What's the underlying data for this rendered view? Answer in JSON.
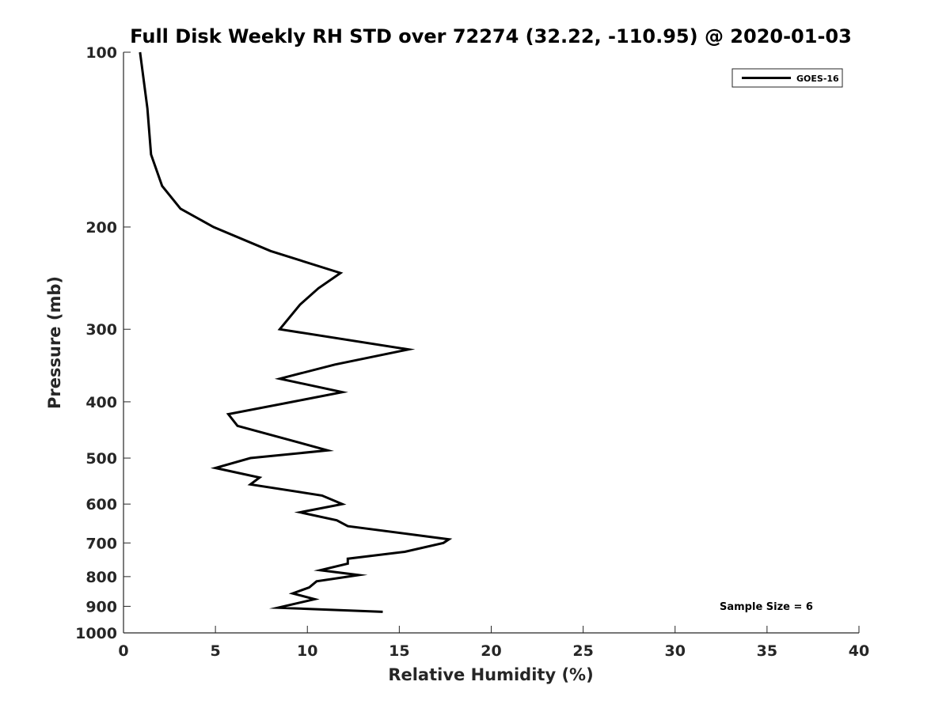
{
  "chart_data": {
    "type": "line",
    "title": "Full Disk Weekly RH STD over 72274 (32.22, -110.95) @ 2020-01-03",
    "xlabel": "Relative Humidity (%)",
    "ylabel": "Pressure (mb)",
    "xlim": [
      0,
      40
    ],
    "ylim": [
      100,
      1000
    ],
    "y_scale": "log",
    "y_reversed": true,
    "grid": false,
    "legend_position": "top-right",
    "x_ticks": [
      0,
      5,
      10,
      15,
      20,
      25,
      30,
      35,
      40
    ],
    "y_ticks": [
      100,
      200,
      300,
      400,
      500,
      600,
      700,
      800,
      900,
      1000
    ],
    "annotation": "Sample Size = 6",
    "series": [
      {
        "name": "GOES-16",
        "color": "#000000",
        "points": [
          [
            0.9,
            100
          ],
          [
            1.3,
            125
          ],
          [
            1.5,
            150
          ],
          [
            2.1,
            170
          ],
          [
            3.1,
            186
          ],
          [
            4.9,
            200
          ],
          [
            8.0,
            220
          ],
          [
            11.8,
            240
          ],
          [
            10.6,
            255
          ],
          [
            9.6,
            272
          ],
          [
            8.5,
            300
          ],
          [
            15.5,
            325
          ],
          [
            11.5,
            345
          ],
          [
            8.5,
            365
          ],
          [
            11.9,
            385
          ],
          [
            9.2,
            400
          ],
          [
            5.7,
            420
          ],
          [
            6.2,
            440
          ],
          [
            9.0,
            465
          ],
          [
            11.1,
            485
          ],
          [
            6.9,
            500
          ],
          [
            5.0,
            520
          ],
          [
            7.4,
            540
          ],
          [
            6.9,
            555
          ],
          [
            10.8,
            580
          ],
          [
            11.9,
            600
          ],
          [
            9.6,
            620
          ],
          [
            11.6,
            640
          ],
          [
            12.2,
            655
          ],
          [
            17.7,
            690
          ],
          [
            17.4,
            700
          ],
          [
            15.3,
            725
          ],
          [
            12.2,
            745
          ],
          [
            12.2,
            760
          ],
          [
            10.7,
            780
          ],
          [
            12.8,
            795
          ],
          [
            10.5,
            815
          ],
          [
            10.1,
            835
          ],
          [
            9.2,
            855
          ],
          [
            10.4,
            875
          ],
          [
            8.4,
            905
          ],
          [
            14.1,
            920
          ]
        ]
      }
    ]
  }
}
